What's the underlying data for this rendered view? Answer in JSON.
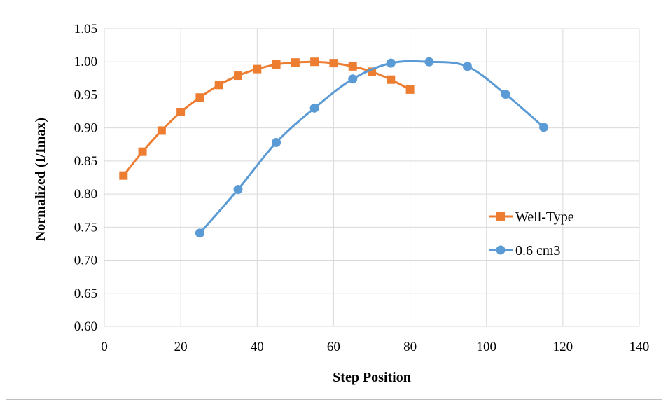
{
  "chart_data": {
    "type": "line",
    "title": "",
    "xlabel": "Step Position",
    "ylabel": "Normalized (I/Imax)",
    "xlim": [
      0,
      140
    ],
    "ylim": [
      0.6,
      1.05
    ],
    "x_ticks": [
      "0",
      "20",
      "40",
      "60",
      "80",
      "100",
      "120",
      "140"
    ],
    "y_ticks": [
      "0.60",
      "0.65",
      "0.70",
      "0.75",
      "0.80",
      "0.85",
      "0.90",
      "0.95",
      "1.00",
      "1.05"
    ],
    "grid": true,
    "legend_position": "right",
    "series": [
      {
        "name": "Well-Type",
        "color": "#ED7D31",
        "marker": "square",
        "x": [
          5,
          10,
          15,
          20,
          25,
          30,
          35,
          40,
          45,
          50,
          55,
          60,
          65,
          70,
          75,
          80
        ],
        "y": [
          0.828,
          0.864,
          0.896,
          0.924,
          0.946,
          0.965,
          0.979,
          0.989,
          0.996,
          0.999,
          1.0,
          0.998,
          0.993,
          0.985,
          0.973,
          0.958
        ]
      },
      {
        "name": "0.6 cm3",
        "color": "#5B9BD5",
        "marker": "circle",
        "x": [
          25,
          35,
          45,
          55,
          65,
          75,
          85,
          95,
          105,
          115
        ],
        "y": [
          0.741,
          0.807,
          0.878,
          0.93,
          0.974,
          0.998,
          1.0,
          0.993,
          0.951,
          0.901
        ]
      }
    ]
  }
}
